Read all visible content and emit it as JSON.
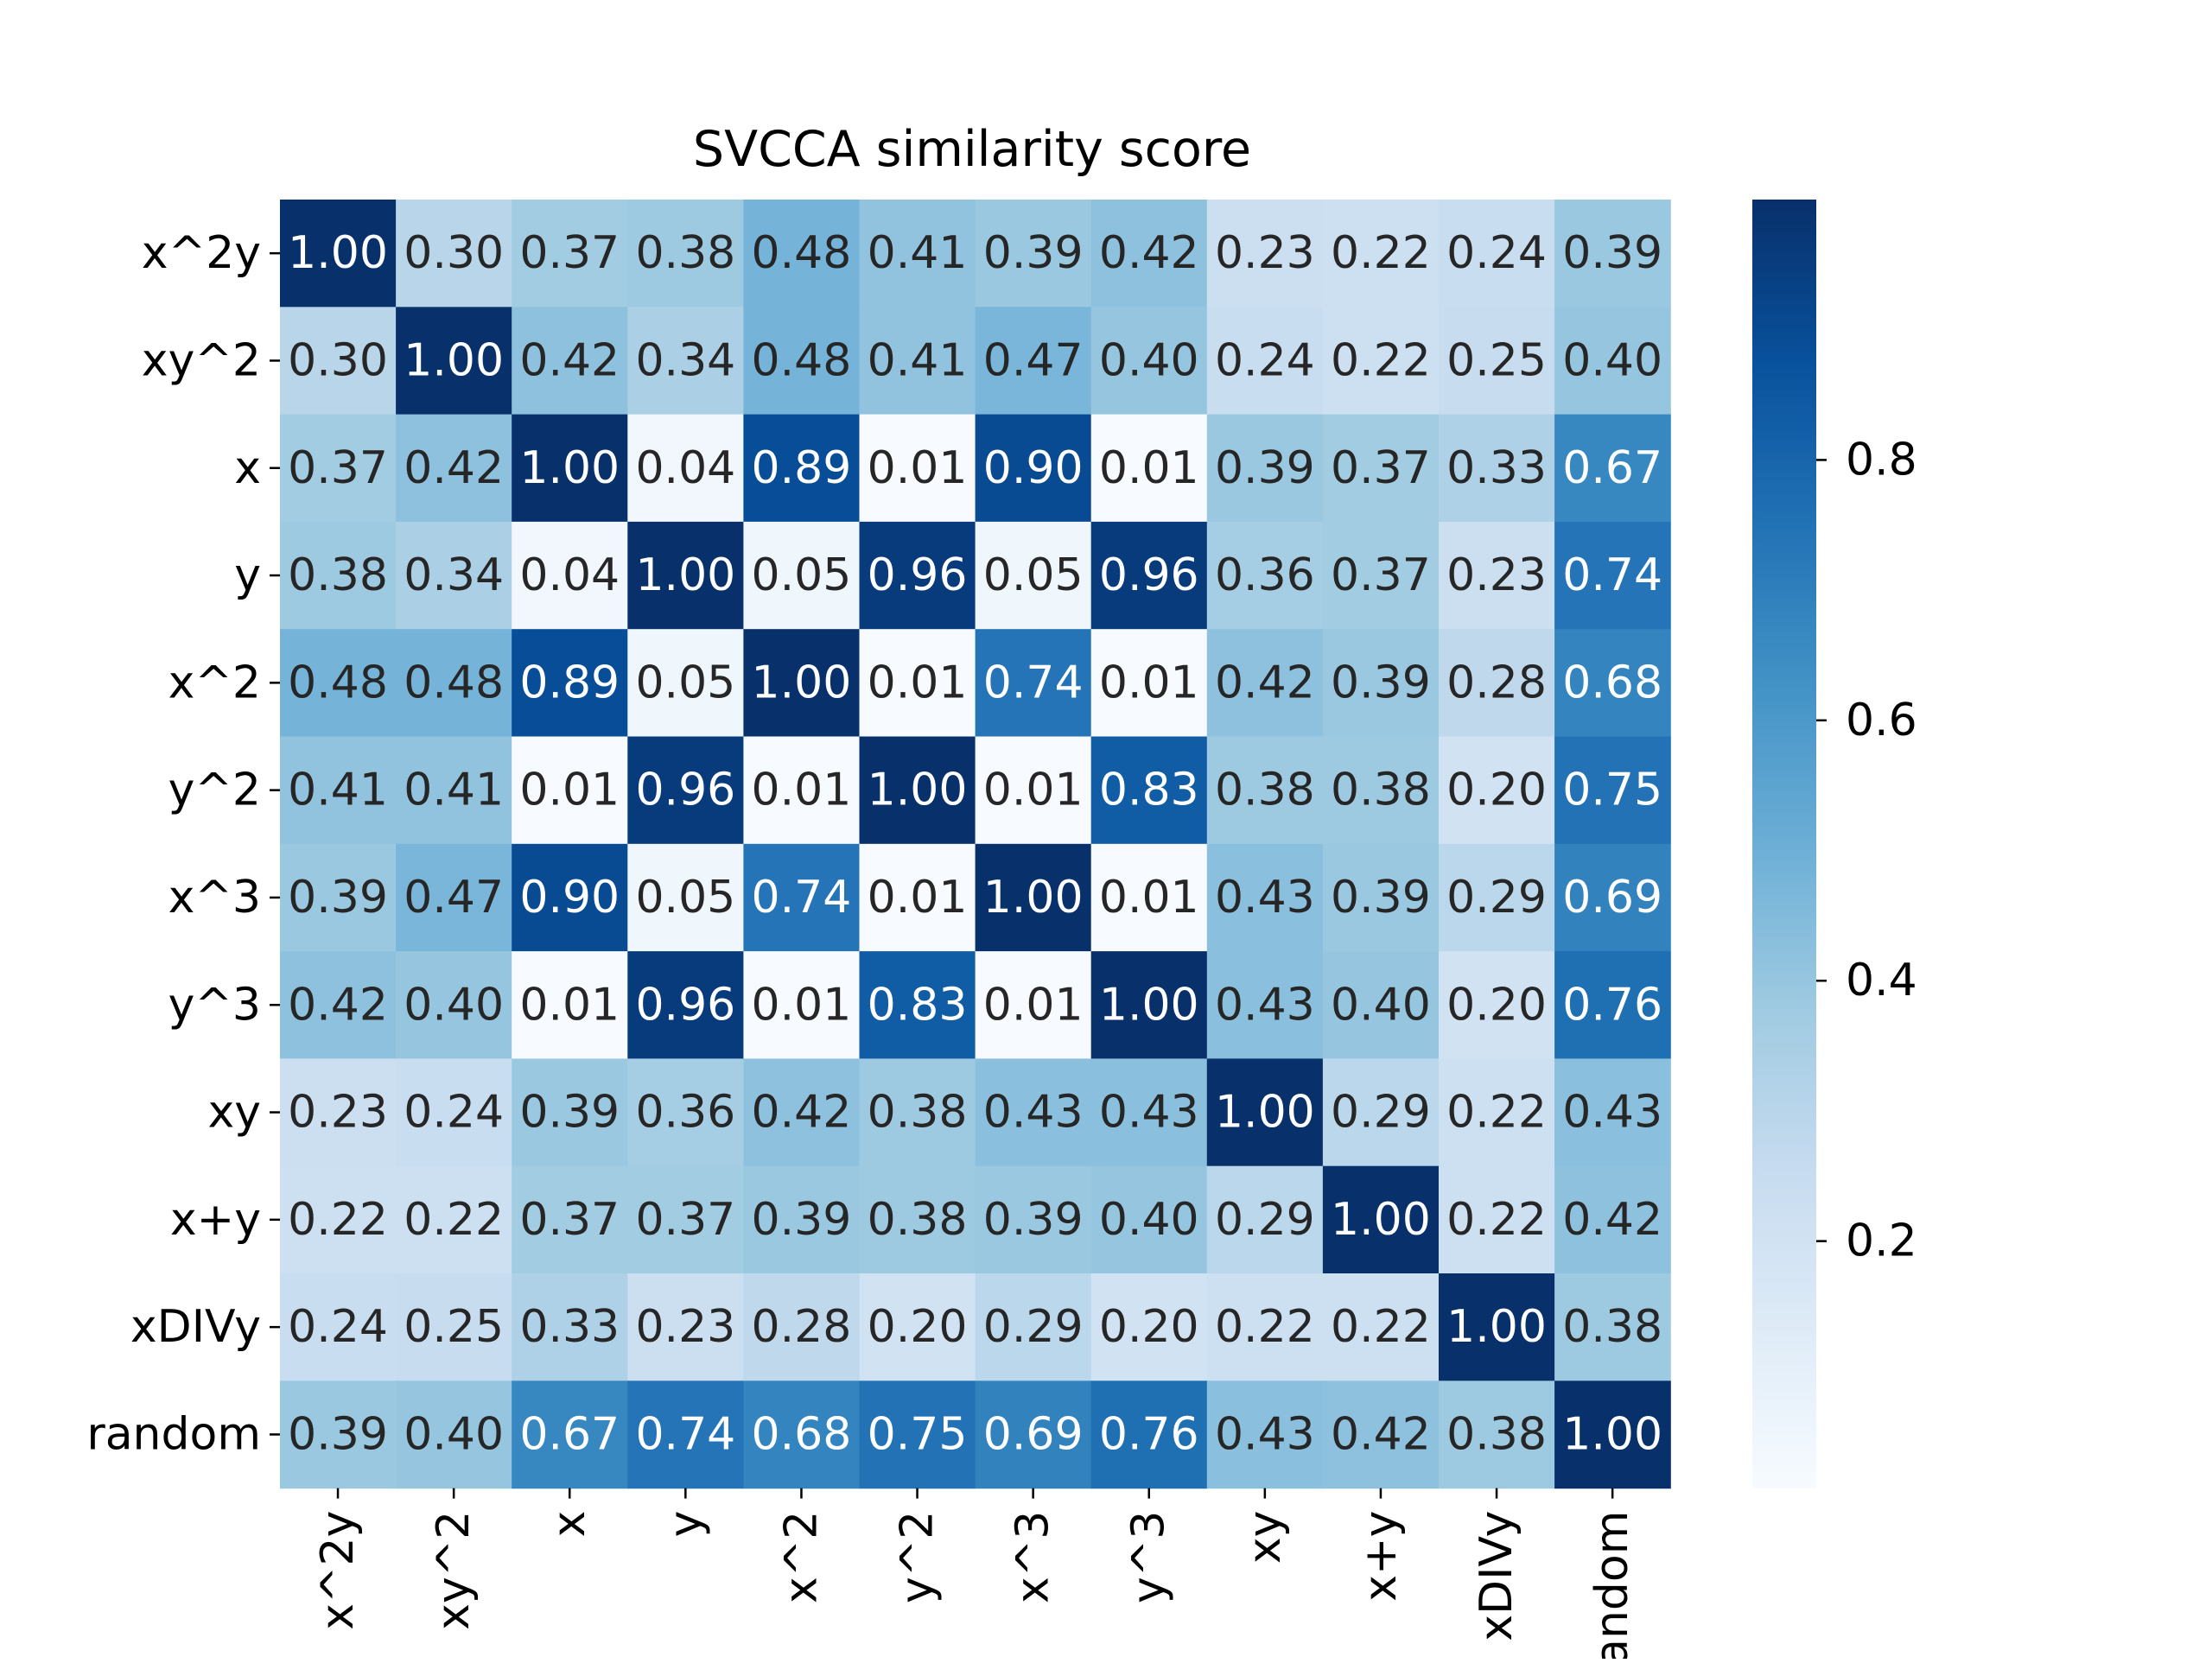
{
  "chart_data": {
    "type": "heatmap",
    "title": "SVCCA similarity score",
    "xlabel": "",
    "ylabel": "",
    "row_labels": [
      "x^2y",
      "xy^2",
      "x",
      "y",
      "x^2",
      "y^2",
      "x^3",
      "y^3",
      "xy",
      "x+y",
      "xDIVy",
      "random"
    ],
    "col_labels": [
      "x^2y",
      "xy^2",
      "x",
      "y",
      "x^2",
      "y^2",
      "x^3",
      "y^3",
      "xy",
      "x+y",
      "xDIVy",
      "random"
    ],
    "values": [
      [
        1.0,
        0.3,
        0.37,
        0.38,
        0.48,
        0.41,
        0.39,
        0.42,
        0.23,
        0.22,
        0.24,
        0.39
      ],
      [
        0.3,
        1.0,
        0.42,
        0.34,
        0.48,
        0.41,
        0.47,
        0.4,
        0.24,
        0.22,
        0.25,
        0.4
      ],
      [
        0.37,
        0.42,
        1.0,
        0.04,
        0.89,
        0.01,
        0.9,
        0.01,
        0.39,
        0.37,
        0.33,
        0.67
      ],
      [
        0.38,
        0.34,
        0.04,
        1.0,
        0.05,
        0.96,
        0.05,
        0.96,
        0.36,
        0.37,
        0.23,
        0.74
      ],
      [
        0.48,
        0.48,
        0.89,
        0.05,
        1.0,
        0.01,
        0.74,
        0.01,
        0.42,
        0.39,
        0.28,
        0.68
      ],
      [
        0.41,
        0.41,
        0.01,
        0.96,
        0.01,
        1.0,
        0.01,
        0.83,
        0.38,
        0.38,
        0.2,
        0.75
      ],
      [
        0.39,
        0.47,
        0.9,
        0.05,
        0.74,
        0.01,
        1.0,
        0.01,
        0.43,
        0.39,
        0.29,
        0.69
      ],
      [
        0.42,
        0.4,
        0.01,
        0.96,
        0.01,
        0.83,
        0.01,
        1.0,
        0.43,
        0.4,
        0.2,
        0.76
      ],
      [
        0.23,
        0.24,
        0.39,
        0.36,
        0.42,
        0.38,
        0.43,
        0.43,
        1.0,
        0.29,
        0.22,
        0.43
      ],
      [
        0.22,
        0.22,
        0.37,
        0.37,
        0.39,
        0.38,
        0.39,
        0.4,
        0.29,
        1.0,
        0.22,
        0.42
      ],
      [
        0.24,
        0.25,
        0.33,
        0.23,
        0.28,
        0.2,
        0.29,
        0.2,
        0.22,
        0.22,
        1.0,
        0.38
      ],
      [
        0.39,
        0.4,
        0.67,
        0.74,
        0.68,
        0.75,
        0.69,
        0.76,
        0.43,
        0.42,
        0.38,
        1.0
      ]
    ],
    "value_format": "0.00",
    "colormap": "Blues",
    "colormap_stops": [
      "#f7fbff",
      "#deebf7",
      "#c6dbef",
      "#9ecae1",
      "#6baed6",
      "#4292c6",
      "#2171b5",
      "#08519c",
      "#08306b"
    ],
    "colorbar": {
      "range": [
        0.01,
        1.0
      ],
      "ticks": [
        0.2,
        0.4,
        0.6,
        0.8
      ],
      "tick_labels": [
        "0.2",
        "0.4",
        "0.6",
        "0.8"
      ]
    },
    "text_colors": {
      "light": "#ffffff",
      "dark": "#262626"
    },
    "grid": false,
    "legend": "none"
  }
}
